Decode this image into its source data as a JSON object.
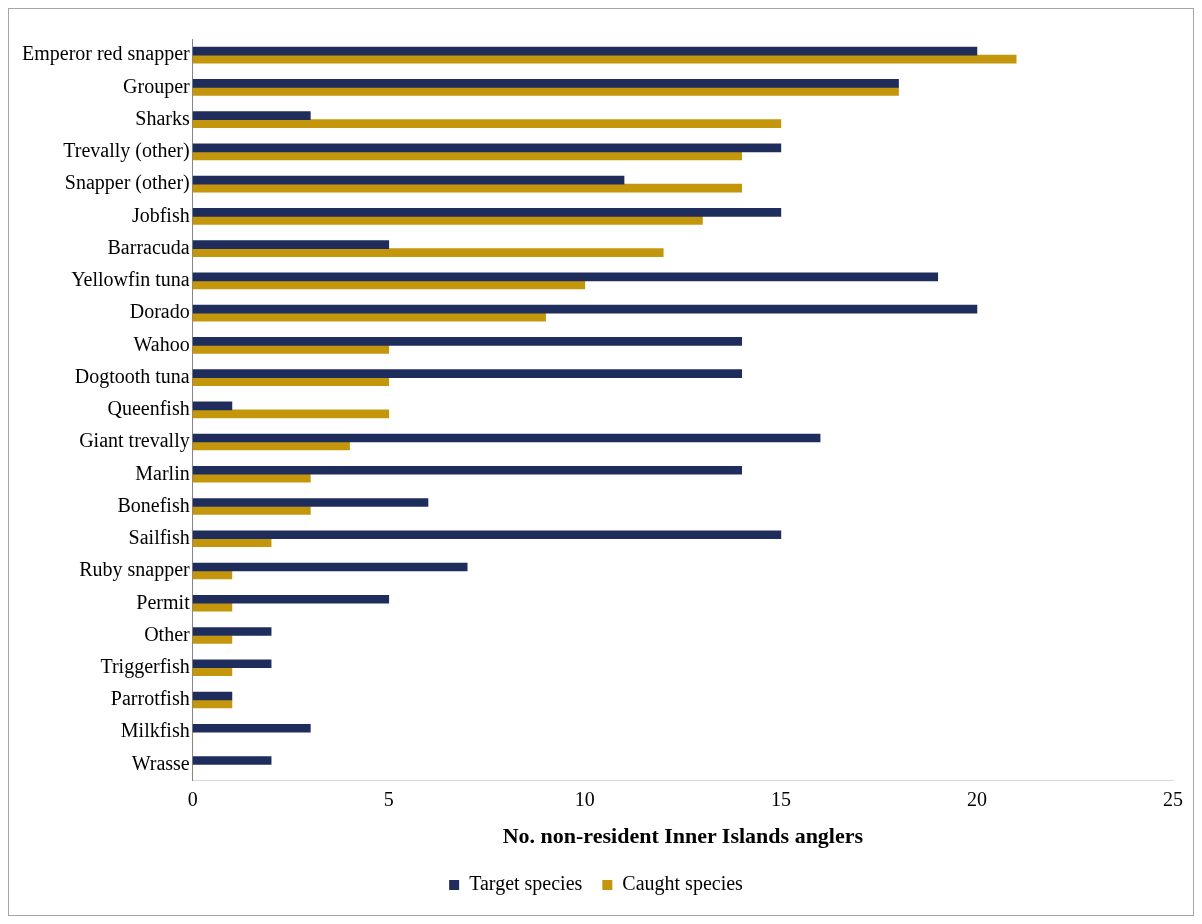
{
  "chart_data": {
    "type": "bar",
    "orientation": "horizontal",
    "xlabel": "No. non-resident Inner Islands anglers",
    "categories": [
      "Emperor red snapper",
      "Grouper",
      "Sharks",
      "Trevally (other)",
      "Snapper (other)",
      "Jobfish",
      "Barracuda",
      "Yellowfin tuna",
      "Dorado",
      "Wahoo",
      "Dogtooth tuna",
      "Queenfish",
      "Giant trevally",
      "Marlin",
      "Bonefish",
      "Sailfish",
      "Ruby snapper",
      "Permit",
      "Other",
      "Triggerfish",
      "Parrotfish",
      "Milkfish",
      "Wrasse"
    ],
    "series": [
      {
        "name": "Target species",
        "color": "#1f2d5c",
        "values": [
          20,
          18,
          3,
          15,
          11,
          15,
          5,
          19,
          20,
          14,
          14,
          1,
          16,
          14,
          6,
          15,
          7,
          5,
          2,
          2,
          1,
          3,
          2
        ]
      },
      {
        "name": "Caught species",
        "color": "#c4960c",
        "values": [
          21,
          18,
          15,
          14,
          14,
          13,
          12,
          10,
          9,
          5,
          5,
          5,
          4,
          3,
          3,
          2,
          1,
          1,
          1,
          1,
          1,
          0,
          0
        ]
      }
    ],
    "xlim": [
      0,
      25
    ],
    "xticks": [
      0,
      5,
      10,
      15,
      20,
      25
    ],
    "grid": false,
    "legend": "bottom"
  }
}
